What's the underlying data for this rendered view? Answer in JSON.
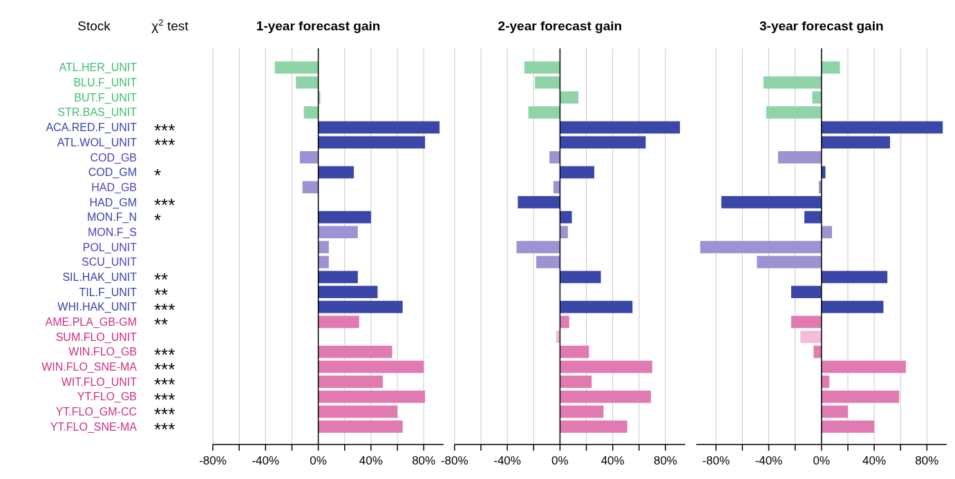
{
  "chart_data": [
    {
      "type": "other",
      "title": "χ$^{2}$ test",
      "annotations": [
        null,
        null,
        null,
        null,
        "***",
        "***",
        null,
        "*",
        null,
        "***",
        "*",
        null,
        null,
        null,
        "**",
        "**",
        "***",
        "**",
        null,
        "***",
        "***",
        "***",
        "***",
        "***",
        "***"
      ]
    },
    {
      "type": "bar",
      "orientation": "horizontal",
      "title": "1-year forecast gain",
      "ylabel": "Stock",
      "grid": "x",
      "categories": [
        "ATL.HER_UNIT",
        "BLU.F_UNIT",
        "BUT.F_UNIT",
        "STR.BAS_UNIT",
        "ACA.RED.F_UNIT",
        "ATL.WOL_UNIT",
        "COD_GB",
        "COD_GM",
        "HAD_GB",
        "HAD_GM",
        "MON.F_N",
        "MON.F_S",
        "POL_UNIT",
        "SCU_UNIT",
        "SIL.HAK_UNIT",
        "TIL.F_UNIT",
        "WHI.HAK_UNIT",
        "AME.PLA_GB-GM",
        "SUM.FLO_UNIT",
        "WIN.FLO_GB",
        "WIN.FLO_SNE-MA",
        "WIT.FLO_UNIT",
        "YT.FLO_GB",
        "YT.FLO_GM-CC",
        "YT.FLO_SNE-MA"
      ],
      "values": [
        -33,
        -17,
        1.5,
        -11,
        92,
        81,
        -14,
        27,
        -12,
        0,
        40,
        30,
        8,
        8,
        30,
        45,
        64,
        31,
        0,
        56,
        80,
        49,
        81,
        60,
        64
      ],
      "colors": [
        "#8fd4a8",
        "#8fd4a8",
        "#8fd4a8",
        "#8fd4a8",
        "#3b47a8",
        "#3b47a8",
        "#9d92d2",
        "#3b47a8",
        "#9d92d2",
        "#3b47a8",
        "#3b47a8",
        "#9d92d2",
        "#9d92d2",
        "#9d92d2",
        "#3b47a8",
        "#3b47a8",
        "#3b47a8",
        "#e07ab0",
        "#f3bcd8",
        "#e07ab0",
        "#e07ab0",
        "#e07ab0",
        "#e07ab0",
        "#e07ab0",
        "#e07ab0"
      ],
      "xlim": [
        -80,
        95
      ],
      "xticks": [
        {
          "value": -80,
          "label": "-80%"
        },
        {
          "value": -60,
          "label": null
        },
        {
          "value": -40,
          "label": "-40%"
        },
        {
          "value": -20,
          "label": null
        },
        {
          "value": 0,
          "label": "0%"
        },
        {
          "value": 20,
          "label": null
        },
        {
          "value": 40,
          "label": "40%"
        },
        {
          "value": 60,
          "label": null
        },
        {
          "value": 80,
          "label": "80%"
        }
      ]
    },
    {
      "type": "bar",
      "orientation": "horizontal",
      "title": "2-year forecast gain",
      "grid": "x",
      "tick_labels": "x",
      "categories": [
        null,
        null,
        null,
        null,
        null,
        null,
        null,
        null,
        null,
        null,
        null,
        null,
        null,
        null,
        null,
        null,
        null,
        null,
        null,
        null,
        null,
        null,
        null,
        null,
        null
      ],
      "values": [
        -27,
        -19,
        14,
        -24,
        91,
        65,
        -8,
        26,
        -5,
        -32,
        9,
        6,
        -33,
        -18,
        31,
        0,
        55,
        7,
        -3,
        22,
        70,
        24,
        69,
        33,
        51
      ],
      "colors": [
        "#8fd4a8",
        "#8fd4a8",
        "#8fd4a8",
        "#8fd4a8",
        "#3b47a8",
        "#3b47a8",
        "#9d92d2",
        "#3b47a8",
        "#9d92d2",
        "#3b47a8",
        "#3b47a8",
        "#9d92d2",
        "#9d92d2",
        "#9d92d2",
        "#3b47a8",
        "#3b47a8",
        "#3b47a8",
        "#e07ab0",
        "#f3bcd8",
        "#e07ab0",
        "#e07ab0",
        "#e07ab0",
        "#e07ab0",
        "#e07ab0",
        "#e07ab0"
      ],
      "xlim": [
        -80,
        95
      ],
      "xticks": [
        {
          "value": -80,
          "label": "-80%"
        },
        {
          "value": -60,
          "label": null
        },
        {
          "value": -40,
          "label": "-40%"
        },
        {
          "value": -20,
          "label": null
        },
        {
          "value": 0,
          "label": "0%"
        },
        {
          "value": 20,
          "label": null
        },
        {
          "value": 40,
          "label": "40%"
        },
        {
          "value": 60,
          "label": null
        },
        {
          "value": 80,
          "label": "80%"
        }
      ]
    },
    {
      "type": "bar",
      "orientation": "horizontal",
      "title": "3-year forecast gain",
      "grid": "x",
      "tick_labels": "x",
      "categories": [
        null,
        null,
        null,
        null,
        null,
        null,
        null,
        null,
        null,
        null,
        null,
        null,
        null,
        null,
        null,
        null,
        null,
        null,
        null,
        null,
        null,
        null,
        null,
        null,
        null
      ],
      "values": [
        14,
        -44,
        -7,
        -42,
        92,
        52,
        -33,
        3,
        -2,
        -76,
        -13,
        8,
        -92,
        -49,
        50,
        -23,
        47,
        -23,
        -16,
        -6,
        64,
        6,
        59,
        20,
        40
      ],
      "colors": [
        "#8fd4a8",
        "#8fd4a8",
        "#8fd4a8",
        "#8fd4a8",
        "#3b47a8",
        "#3b47a8",
        "#9d92d2",
        "#3b47a8",
        "#9d92d2",
        "#3b47a8",
        "#3b47a8",
        "#9d92d2",
        "#9d92d2",
        "#9d92d2",
        "#3b47a8",
        "#3b47a8",
        "#3b47a8",
        "#e07ab0",
        "#f3bcd8",
        "#e07ab0",
        "#e07ab0",
        "#e07ab0",
        "#e07ab0",
        "#e07ab0",
        "#e07ab0"
      ],
      "xlim": [
        -95,
        95
      ],
      "xticks": [
        {
          "value": -80,
          "label": "-80%"
        },
        {
          "value": -60,
          "label": null
        },
        {
          "value": -40,
          "label": "-40%"
        },
        {
          "value": -20,
          "label": null
        },
        {
          "value": 0,
          "label": "0%"
        },
        {
          "value": 20,
          "label": null
        },
        {
          "value": 40,
          "label": "40%"
        },
        {
          "value": 60,
          "label": null
        },
        {
          "value": 80,
          "label": "80%"
        }
      ]
    }
  ]
}
